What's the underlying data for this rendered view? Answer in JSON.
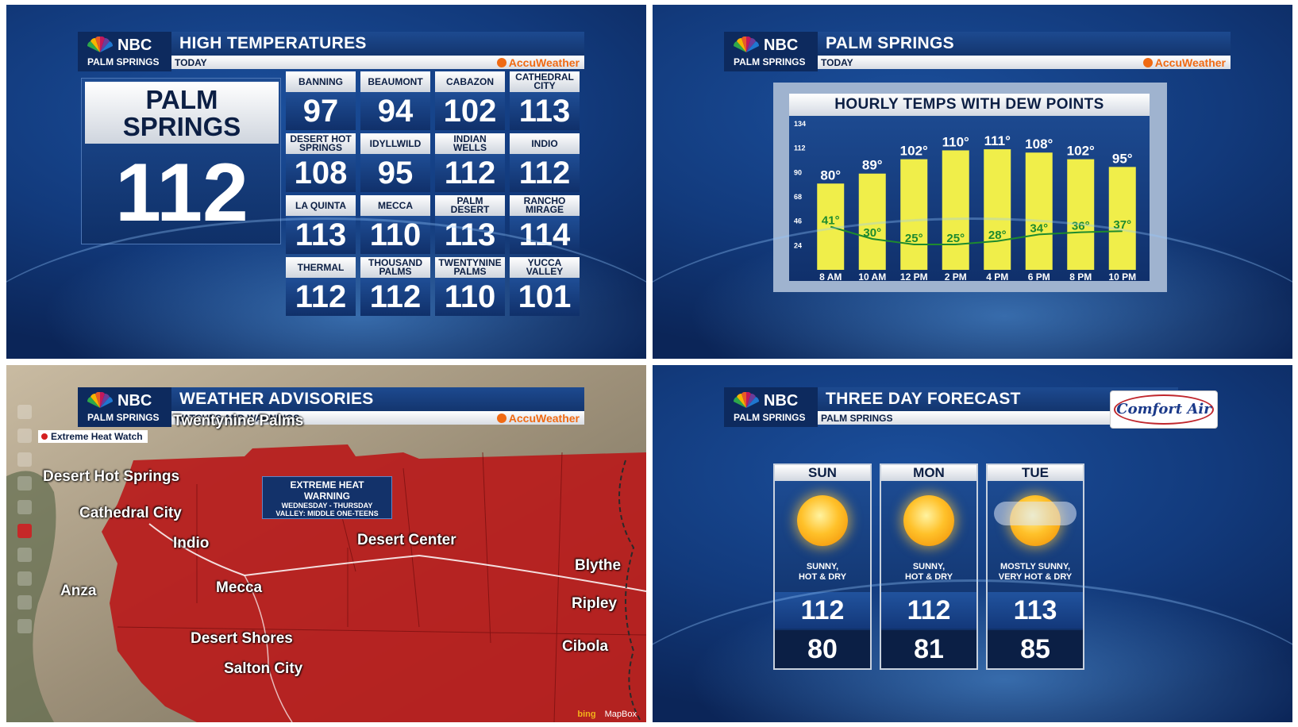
{
  "station": {
    "network": "NBC",
    "market": "PALM SPRINGS",
    "provider": "AccuWeather"
  },
  "colors": {
    "navy": "#0d2a5e",
    "accu_orange": "#f06a13",
    "warning_red": "#b81c1c",
    "bar_yellow": "#f0ee4a",
    "dew_green": "#1e8a2e"
  },
  "high_temps": {
    "title": "HIGH TEMPERATURES",
    "subtitle": "TODAY",
    "featured": {
      "city": "PALM SPRINGS",
      "value": "112"
    },
    "cities": [
      {
        "name": "BANNING",
        "value": "97"
      },
      {
        "name": "BEAUMONT",
        "value": "94"
      },
      {
        "name": "CABAZON",
        "value": "102"
      },
      {
        "name": "CATHEDRAL CITY",
        "value": "113"
      },
      {
        "name": "DESERT HOT SPRINGS",
        "value": "108"
      },
      {
        "name": "IDYLLWILD",
        "value": "95"
      },
      {
        "name": "INDIAN WELLS",
        "value": "112"
      },
      {
        "name": "INDIO",
        "value": "112"
      },
      {
        "name": "LA QUINTA",
        "value": "113"
      },
      {
        "name": "MECCA",
        "value": "110"
      },
      {
        "name": "PALM DESERT",
        "value": "113"
      },
      {
        "name": "RANCHO MIRAGE",
        "value": "114"
      },
      {
        "name": "THERMAL",
        "value": "112"
      },
      {
        "name": "THOUSAND PALMS",
        "value": "112"
      },
      {
        "name": "TWENTYNINE PALMS",
        "value": "110"
      },
      {
        "name": "YUCCA VALLEY",
        "value": "101"
      }
    ]
  },
  "hourly": {
    "title": "PALM SPRINGS",
    "subtitle": "TODAY",
    "chart_title": "HOURLY TEMPS WITH DEW POINTS"
  },
  "chart_data": {
    "type": "bar",
    "title": "HOURLY TEMPS WITH DEW POINTS",
    "categories": [
      "8 AM",
      "10 AM",
      "12 PM",
      "2 PM",
      "4 PM",
      "6 PM",
      "8 PM",
      "10 PM"
    ],
    "series": [
      {
        "values": [
          80,
          89,
          102,
          110,
          111,
          108,
          102,
          95
        ]
      },
      {
        "values": [
          41,
          30,
          25,
          25,
          28,
          34,
          36,
          37
        ]
      }
    ],
    "temp_labels": [
      "80°",
      "89°",
      "102°",
      "110°",
      "111°",
      "108°",
      "102°",
      "95°"
    ],
    "dew_labels": [
      "41°",
      "30°",
      "25°",
      "25°",
      "28°",
      "34°",
      "36°",
      "37°"
    ],
    "yticks": [
      "134",
      "112",
      "90",
      "68",
      "46",
      "24"
    ],
    "ylim": [
      2,
      134
    ],
    "grid": false
  },
  "advisories": {
    "title": "WEATHER ADVISORIES",
    "subtitle": "WATCHES AND WARNINGS",
    "watch_tag": "Extreme Heat Watch",
    "warning": {
      "line1": "EXTREME HEAT",
      "line2": "WARNING",
      "line3": "WEDNESDAY - THURSDAY",
      "line4": "VALLEY: MIDDLE ONE-TEENS"
    },
    "places": [
      "Twentynine Palms",
      "Desert Hot Springs",
      "Cathedral City",
      "Indio",
      "Desert Center",
      "Blythe",
      "Anza",
      "Mecca",
      "Ripley",
      "Desert Shores",
      "Cibola",
      "Salton City"
    ],
    "credits": {
      "bing": "bing",
      "mapbox": "MapBox"
    }
  },
  "forecast": {
    "title": "THREE DAY FORECAST",
    "subtitle": "PALM SPRINGS",
    "sponsor": "Comfort Air",
    "days": [
      {
        "day": "SUN",
        "cond1": "SUNNY,",
        "cond2": "HOT & DRY",
        "hi": "112",
        "lo": "80",
        "icon": "sun-icon"
      },
      {
        "day": "MON",
        "cond1": "SUNNY,",
        "cond2": "HOT & DRY",
        "hi": "112",
        "lo": "81",
        "icon": "sun-icon"
      },
      {
        "day": "TUE",
        "cond1": "MOSTLY SUNNY,",
        "cond2": "VERY HOT & DRY",
        "hi": "113",
        "lo": "85",
        "icon": "mostly-sunny-icon"
      }
    ]
  }
}
